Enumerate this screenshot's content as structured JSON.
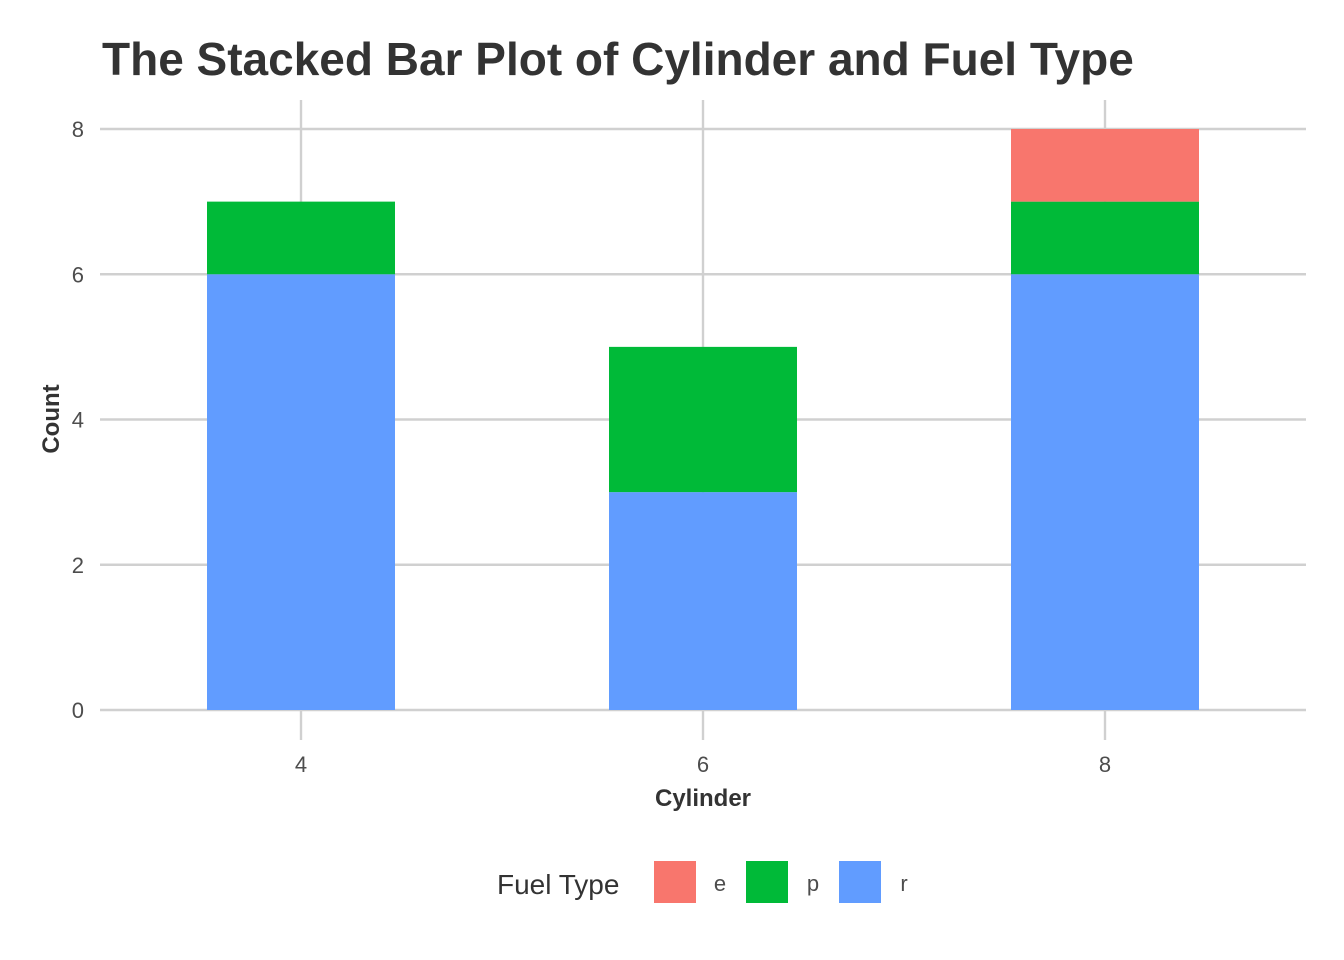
{
  "chart_data": {
    "type": "bar",
    "stacked": true,
    "title": "The Stacked Bar Plot of Cylinder and Fuel Type",
    "xlabel": "Cylinder",
    "ylabel": "Count",
    "categories": [
      "4",
      "6",
      "8"
    ],
    "ylim": [
      0,
      8
    ],
    "yticks": [
      "0",
      "2",
      "4",
      "6",
      "8"
    ],
    "grid": true,
    "legend": {
      "title": "Fuel Type",
      "position": "bottom"
    },
    "series": [
      {
        "name": "r",
        "color": "#619CFF",
        "values": [
          6,
          3,
          6
        ]
      },
      {
        "name": "p",
        "color": "#00BA38",
        "values": [
          1,
          2,
          1
        ]
      },
      {
        "name": "e",
        "color": "#F8766D",
        "values": [
          0,
          0,
          1
        ]
      }
    ],
    "legend_order": [
      "e",
      "p",
      "r"
    ]
  }
}
